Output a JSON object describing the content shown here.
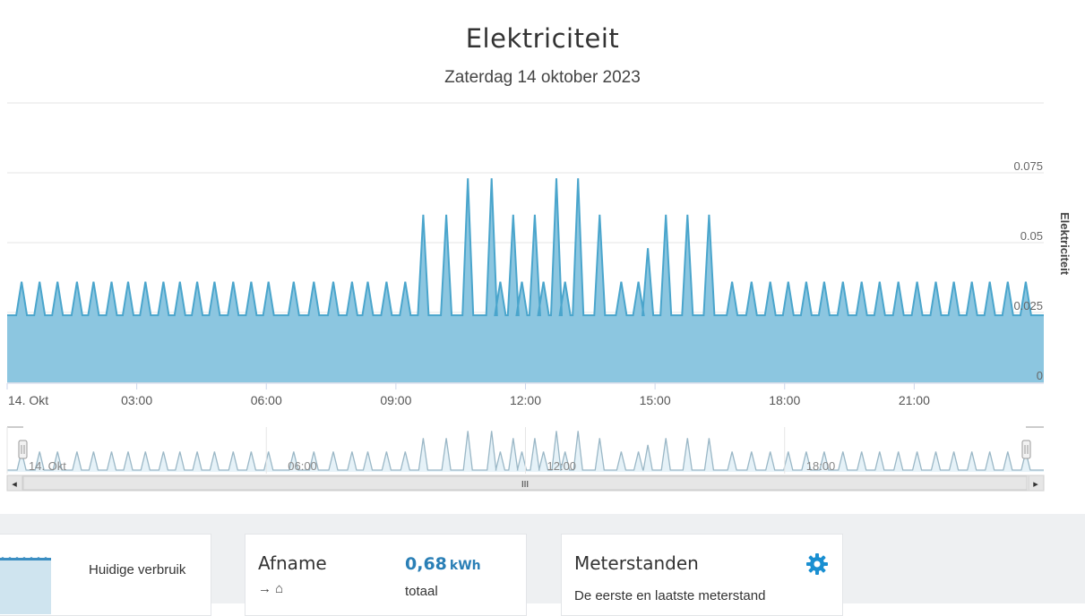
{
  "chart_data": {
    "type": "area",
    "title": "Elektriciteit",
    "subtitle": "Zaterdag 14 oktober 2023",
    "ylabel": "Elektriciteit",
    "ylim": [
      0,
      0.075
    ],
    "y_ticks": [
      "0",
      "0.025",
      "0.05",
      "0.075"
    ],
    "x_range": [
      "00:00",
      "24:00"
    ],
    "x_ticks": [
      {
        "time": "00:00",
        "label": "14. Okt"
      },
      {
        "time": "03:00",
        "label": "03:00"
      },
      {
        "time": "06:00",
        "label": "06:00"
      },
      {
        "time": "09:00",
        "label": "09:00"
      },
      {
        "time": "12:00",
        "label": "12:00"
      },
      {
        "time": "15:00",
        "label": "15:00"
      },
      {
        "time": "18:00",
        "label": "18:00"
      },
      {
        "time": "21:00",
        "label": "21:00"
      }
    ],
    "grid": true,
    "color": "#8cc6e0",
    "line_color": "#4aa5cc",
    "baseline": 0.024,
    "series": [
      {
        "spikes": [
          {
            "time": "00:20",
            "value": 0.036
          },
          {
            "time": "00:45",
            "value": 0.036
          },
          {
            "time": "01:10",
            "value": 0.036
          },
          {
            "time": "01:37",
            "value": 0.036
          },
          {
            "time": "02:00",
            "value": 0.036
          },
          {
            "time": "02:25",
            "value": 0.036
          },
          {
            "time": "02:48",
            "value": 0.036
          },
          {
            "time": "03:12",
            "value": 0.036
          },
          {
            "time": "03:37",
            "value": 0.036
          },
          {
            "time": "04:00",
            "value": 0.036
          },
          {
            "time": "04:24",
            "value": 0.036
          },
          {
            "time": "04:48",
            "value": 0.036
          },
          {
            "time": "05:14",
            "value": 0.036
          },
          {
            "time": "05:39",
            "value": 0.036
          },
          {
            "time": "06:03",
            "value": 0.036
          },
          {
            "time": "06:38",
            "value": 0.036
          },
          {
            "time": "07:06",
            "value": 0.036
          },
          {
            "time": "07:33",
            "value": 0.036
          },
          {
            "time": "07:59",
            "value": 0.036
          },
          {
            "time": "08:21",
            "value": 0.036
          },
          {
            "time": "08:47",
            "value": 0.036
          },
          {
            "time": "09:13",
            "value": 0.036
          },
          {
            "time": "09:38",
            "value": 0.06
          },
          {
            "time": "10:10",
            "value": 0.06
          },
          {
            "time": "10:40",
            "value": 0.073
          },
          {
            "time": "11:13",
            "value": 0.073
          },
          {
            "time": "11:25",
            "value": 0.036
          },
          {
            "time": "11:43",
            "value": 0.06
          },
          {
            "time": "11:55",
            "value": 0.036
          },
          {
            "time": "12:13",
            "value": 0.06
          },
          {
            "time": "12:25",
            "value": 0.036
          },
          {
            "time": "12:43",
            "value": 0.073
          },
          {
            "time": "12:55",
            "value": 0.036
          },
          {
            "time": "13:13",
            "value": 0.073
          },
          {
            "time": "13:43",
            "value": 0.06
          },
          {
            "time": "14:13",
            "value": 0.036
          },
          {
            "time": "14:37",
            "value": 0.036
          },
          {
            "time": "14:50",
            "value": 0.048
          },
          {
            "time": "15:15",
            "value": 0.06
          },
          {
            "time": "15:45",
            "value": 0.06
          },
          {
            "time": "16:15",
            "value": 0.06
          },
          {
            "time": "16:47",
            "value": 0.036
          },
          {
            "time": "17:14",
            "value": 0.036
          },
          {
            "time": "17:40",
            "value": 0.036
          },
          {
            "time": "18:05",
            "value": 0.036
          },
          {
            "time": "18:30",
            "value": 0.036
          },
          {
            "time": "18:55",
            "value": 0.036
          },
          {
            "time": "19:21",
            "value": 0.036
          },
          {
            "time": "19:47",
            "value": 0.036
          },
          {
            "time": "20:12",
            "value": 0.036
          },
          {
            "time": "20:38",
            "value": 0.036
          },
          {
            "time": "21:04",
            "value": 0.036
          },
          {
            "time": "21:30",
            "value": 0.036
          },
          {
            "time": "21:55",
            "value": 0.036
          },
          {
            "time": "22:20",
            "value": 0.036
          },
          {
            "time": "22:45",
            "value": 0.036
          },
          {
            "time": "23:10",
            "value": 0.036
          },
          {
            "time": "23:35",
            "value": 0.036
          }
        ]
      }
    ],
    "navigator": {
      "x_ticks": [
        {
          "time": "00:00",
          "label": "14. Okt"
        },
        {
          "time": "06:00",
          "label": "06:00"
        },
        {
          "time": "12:00",
          "label": "12:00"
        },
        {
          "time": "18:00",
          "label": "18:00"
        }
      ]
    }
  },
  "scrollbar": {
    "grip": "III",
    "left_arrow": "◂",
    "right_arrow": "▸"
  },
  "cards": {
    "consumption": {
      "label": "Huidige verbruik"
    },
    "offtake": {
      "heading": "Afname",
      "direction": "→ ⌂",
      "value": "0,68",
      "unit": "kWh",
      "total_label": "totaal"
    },
    "meters": {
      "heading": "Meterstanden",
      "description": "De eerste en laatste meterstand"
    }
  },
  "icons": {
    "gear": "gear-icon",
    "home": "home-icon"
  }
}
